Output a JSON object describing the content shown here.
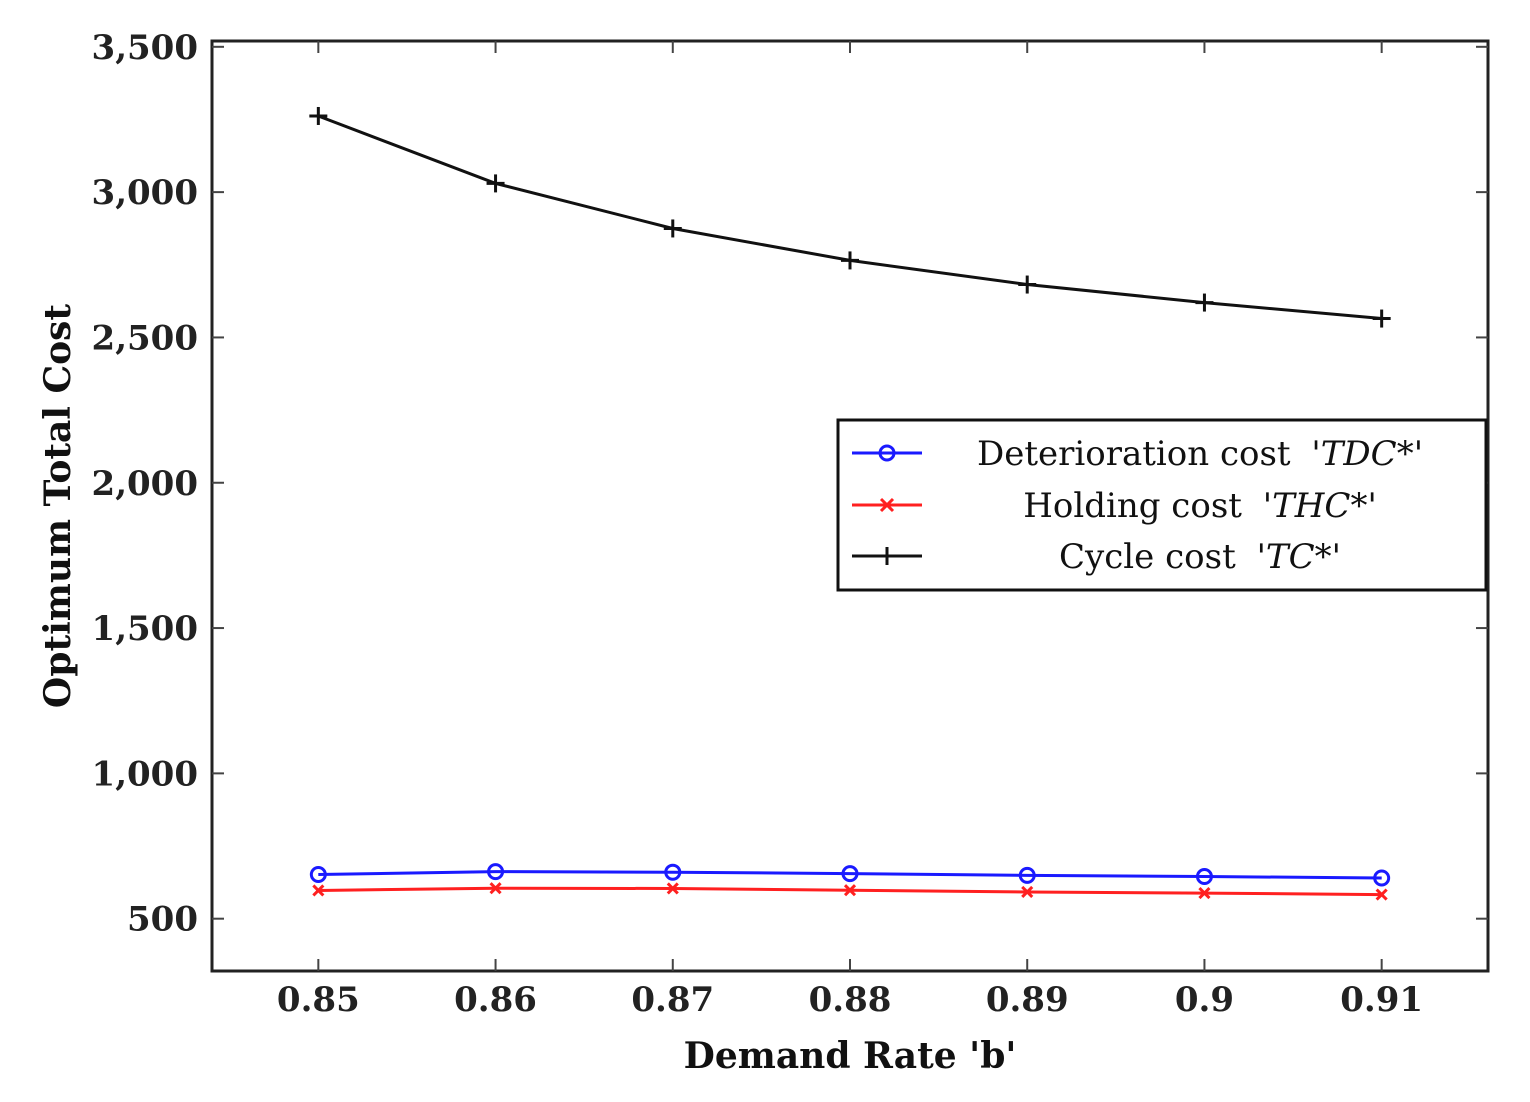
{
  "chart_data": {
    "type": "line",
    "title": "",
    "xlabel": "Demand Rate 'b'",
    "ylabel": "Optimum Total Cost",
    "x": [
      0.85,
      0.86,
      0.87,
      0.88,
      0.89,
      0.9,
      0.91
    ],
    "xtick_labels": [
      "0.85",
      "0.86",
      "0.87",
      "0.88",
      "0.89",
      "0.9",
      "0.91"
    ],
    "xlim": [
      0.844,
      0.916
    ],
    "ylim": [
      320,
      3520
    ],
    "yticks": [
      500,
      1000,
      1500,
      2000,
      2500,
      3000,
      3500
    ],
    "ytick_labels": [
      "500",
      "1,000",
      "1,500",
      "2,000",
      "2,500",
      "3,000",
      "3,500"
    ],
    "grid": false,
    "legend_position": "center-right",
    "series": [
      {
        "name": "Deterioration cost",
        "symbol": "'TDC*'",
        "color": "#1a1aff",
        "marker": "circle",
        "values": [
          652,
          662,
          660,
          655,
          649,
          645,
          640
        ]
      },
      {
        "name": "Holding cost",
        "symbol": "'THC*'",
        "color": "#ff2020",
        "marker": "x",
        "values": [
          597,
          605,
          604,
          598,
          592,
          588,
          583
        ]
      },
      {
        "name": "Cycle cost",
        "symbol": "'TC*'",
        "color": "#111111",
        "marker": "plus",
        "values": [
          3262,
          3030,
          2875,
          2765,
          2682,
          2620,
          2565
        ]
      }
    ]
  }
}
